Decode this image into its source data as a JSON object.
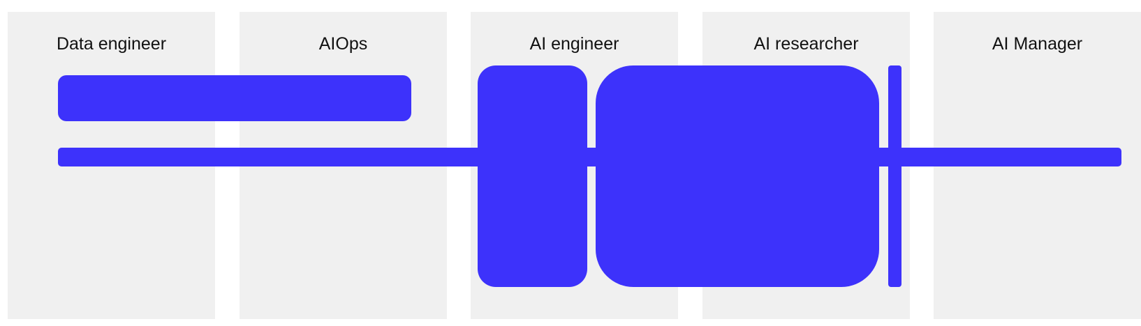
{
  "accent_color": "#3d32fb",
  "column_color": "#f0f0f0",
  "roles": [
    {
      "label": "Data engineer"
    },
    {
      "label": "AIOps"
    },
    {
      "label": "AI engineer"
    },
    {
      "label": "AI researcher"
    },
    {
      "label": "AI Manager"
    }
  ],
  "shape_ids": [
    "bar-top",
    "bar-long",
    "block-ai-engineer",
    "block-ai-researcher",
    "thin-divider"
  ]
}
